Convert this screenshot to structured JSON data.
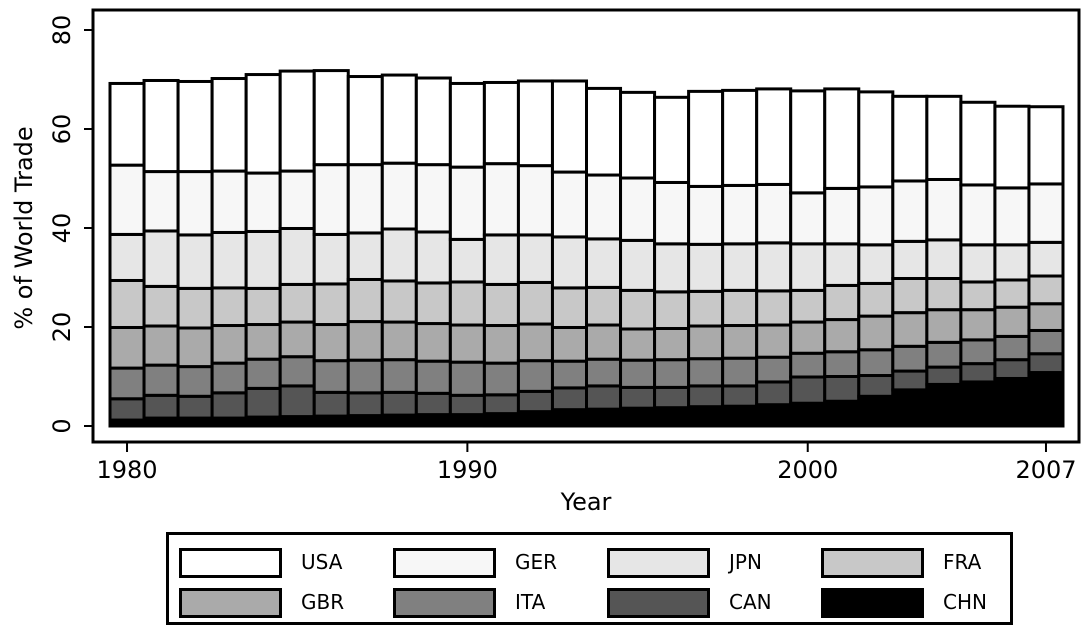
{
  "chart_data": {
    "type": "bar",
    "stacked": true,
    "xlabel": "Year",
    "ylabel": "% of World Trade",
    "ylim": [
      0,
      80
    ],
    "yticks": [
      0,
      20,
      40,
      60,
      80
    ],
    "xticks": [
      1980,
      1990,
      2000,
      2007
    ],
    "grid": false,
    "legend_position": "bottom",
    "categories": [
      1980,
      1981,
      1982,
      1983,
      1984,
      1985,
      1986,
      1987,
      1988,
      1989,
      1990,
      1991,
      1992,
      1993,
      1994,
      1995,
      1996,
      1997,
      1998,
      1999,
      2000,
      2001,
      2002,
      2003,
      2004,
      2005,
      2006,
      2007
    ],
    "series": [
      {
        "name": "CHN",
        "color": "#000000",
        "values": [
          1.2,
          1.6,
          1.6,
          1.6,
          1.8,
          1.9,
          2.0,
          2.1,
          2.2,
          2.3,
          2.3,
          2.5,
          2.9,
          3.3,
          3.4,
          3.6,
          3.7,
          3.9,
          4.0,
          4.3,
          4.6,
          5.0,
          6.0,
          7.3,
          8.4,
          8.9,
          9.6,
          10.8
        ]
      },
      {
        "name": "CAN",
        "color": "#555555",
        "values": [
          4.3,
          4.6,
          4.4,
          5.1,
          5.8,
          6.2,
          4.8,
          4.6,
          4.6,
          4.3,
          3.9,
          3.8,
          4.1,
          4.4,
          4.7,
          4.2,
          4.1,
          4.2,
          4.1,
          4.6,
          5.3,
          5.0,
          4.2,
          3.8,
          3.5,
          3.7,
          3.8,
          3.8
        ]
      },
      {
        "name": "ITA",
        "color": "#808080",
        "values": [
          6.2,
          6.1,
          6.0,
          6.0,
          5.9,
          5.9,
          6.4,
          6.6,
          6.6,
          6.5,
          6.7,
          6.4,
          6.2,
          5.4,
          5.4,
          5.5,
          5.6,
          5.5,
          5.6,
          5.0,
          4.8,
          5.0,
          5.2,
          5.0,
          5.0,
          4.8,
          4.7,
          4.7
        ]
      },
      {
        "name": "GBR",
        "color": "#aaaaaa",
        "values": [
          8.2,
          7.9,
          7.8,
          7.6,
          7.0,
          7.0,
          7.3,
          7.8,
          7.6,
          7.6,
          7.5,
          7.6,
          7.4,
          6.8,
          6.9,
          6.3,
          6.3,
          6.6,
          6.6,
          6.5,
          6.3,
          6.5,
          6.8,
          6.8,
          6.6,
          6.1,
          5.9,
          5.4
        ]
      },
      {
        "name": "FRA",
        "color": "#c8c8c8",
        "values": [
          9.5,
          8.0,
          8.0,
          7.6,
          7.3,
          7.6,
          8.2,
          8.5,
          8.3,
          8.2,
          8.7,
          8.3,
          8.4,
          8.0,
          7.6,
          7.8,
          7.4,
          7.0,
          7.1,
          6.9,
          6.4,
          6.9,
          6.6,
          6.9,
          6.3,
          5.6,
          5.5,
          5.6
        ]
      },
      {
        "name": "JPN",
        "color": "#e6e6e6",
        "values": [
          9.3,
          11.2,
          10.8,
          11.2,
          11.5,
          11.3,
          10.0,
          9.4,
          10.5,
          10.3,
          8.6,
          10.0,
          9.6,
          10.3,
          9.8,
          10.1,
          9.7,
          9.5,
          9.4,
          9.7,
          9.4,
          8.4,
          7.8,
          7.5,
          7.8,
          7.5,
          7.1,
          6.8
        ]
      },
      {
        "name": "GER",
        "color": "#f7f7f7",
        "values": [
          14.0,
          12.0,
          12.8,
          12.4,
          11.8,
          11.6,
          14.1,
          13.8,
          13.3,
          13.6,
          14.6,
          14.4,
          14.0,
          13.1,
          12.9,
          12.6,
          12.4,
          11.7,
          11.8,
          11.8,
          10.3,
          11.2,
          11.7,
          12.2,
          12.2,
          12.1,
          11.5,
          11.8
        ]
      },
      {
        "name": "USA",
        "color": "#ffffff",
        "values": [
          16.5,
          18.4,
          18.2,
          18.7,
          19.9,
          20.2,
          19.0,
          17.8,
          17.8,
          17.5,
          16.9,
          16.4,
          17.1,
          18.4,
          17.5,
          17.3,
          17.2,
          19.2,
          19.2,
          19.3,
          20.6,
          20.1,
          19.2,
          17.1,
          16.8,
          16.7,
          16.5,
          15.6
        ]
      }
    ]
  },
  "legend": {
    "order": [
      "USA",
      "GER",
      "JPN",
      "FRA",
      "GBR",
      "ITA",
      "CAN",
      "CHN"
    ]
  }
}
